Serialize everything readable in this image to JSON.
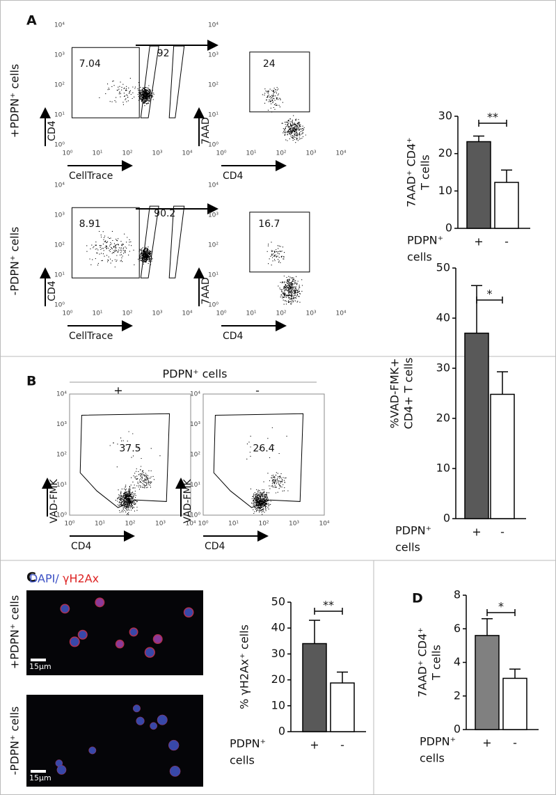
{
  "panel_a": {
    "label": "A",
    "x_label": "CellTrace",
    "y_label": "CD4",
    "x_label_2": "CD4",
    "y_label_2": "7AAD",
    "rows": [
      {
        "condition": "+PDPN⁺ cells",
        "gates": [
          7.04,
          92
        ],
        "gate_7aad": 24
      },
      {
        "condition": "-PDPN⁺ cells",
        "gates": [
          8.91,
          90.2
        ],
        "gate_7aad": 16.7
      }
    ]
  },
  "panel_b": {
    "label": "B",
    "header": "PDPN⁺ cells",
    "columns": [
      "+",
      "-"
    ],
    "gates": [
      37.5,
      26.4
    ],
    "x_label": "CD4",
    "y_label": "VAD-FMK"
  },
  "panel_c": {
    "label": "C",
    "stain_1": "DAPI/",
    "stain_2": "γH2Ax",
    "rows": [
      "+PDPN⁺ cells",
      "-PDPN⁺ cells"
    ],
    "scale_bar": "15µm"
  },
  "panel_d": {
    "label": "D"
  },
  "flow_ticks": [
    {
      "value": 0,
      "label": "10⁰"
    },
    {
      "value": 1,
      "label": "10¹"
    },
    {
      "value": 2,
      "label": "10²"
    },
    {
      "value": 3,
      "label": "10³"
    },
    {
      "value": 4,
      "label": "10⁴"
    }
  ],
  "chart_data": [
    {
      "type": "bar",
      "y_label": [
        "7AAD⁺ CD4⁺",
        "T cells"
      ],
      "x_label": [
        "PDPN⁺",
        "cells"
      ],
      "categories": [
        "+",
        "-"
      ],
      "values": [
        23.2,
        12.3
      ],
      "errors": [
        1.5,
        3.3
      ],
      "colors": [
        "#595959",
        "#ffffff"
      ],
      "ylim": [
        0,
        30
      ],
      "yticks": [
        0,
        10,
        20,
        30
      ],
      "significance": "**"
    },
    {
      "type": "bar",
      "y_label": [
        "%VAD-FMK+",
        "CD4+ T cells"
      ],
      "x_label": [
        "PDPN⁺",
        "cells"
      ],
      "categories": [
        "+",
        "-"
      ],
      "values": [
        37,
        24.8
      ],
      "errors": [
        9.5,
        4.5
      ],
      "colors": [
        "#595959",
        "#ffffff"
      ],
      "ylim": [
        0,
        50
      ],
      "yticks": [
        0,
        10,
        20,
        30,
        40,
        50
      ],
      "significance": "*"
    },
    {
      "type": "bar",
      "y_label": [
        "% γH2Ax⁺ cells"
      ],
      "x_label": [
        "PDPN⁺",
        "cells"
      ],
      "categories": [
        "+",
        "-"
      ],
      "values": [
        34,
        18.8
      ],
      "errors": [
        9,
        4.2
      ],
      "colors": [
        "#595959",
        "#ffffff"
      ],
      "ylim": [
        0,
        50
      ],
      "yticks": [
        0,
        10,
        20,
        30,
        40,
        50
      ],
      "significance": "**"
    },
    {
      "type": "bar",
      "y_label": [
        "7AAD⁺ CD4⁺",
        "T cells"
      ],
      "x_label": [
        "PDPN⁺",
        "cells"
      ],
      "categories": [
        "+",
        "-"
      ],
      "values": [
        5.6,
        3.05
      ],
      "errors": [
        1,
        0.55
      ],
      "colors": [
        "#808080",
        "#ffffff"
      ],
      "ylim": [
        0,
        8
      ],
      "yticks": [
        0,
        2,
        4,
        6,
        8
      ],
      "significance": "*"
    }
  ]
}
